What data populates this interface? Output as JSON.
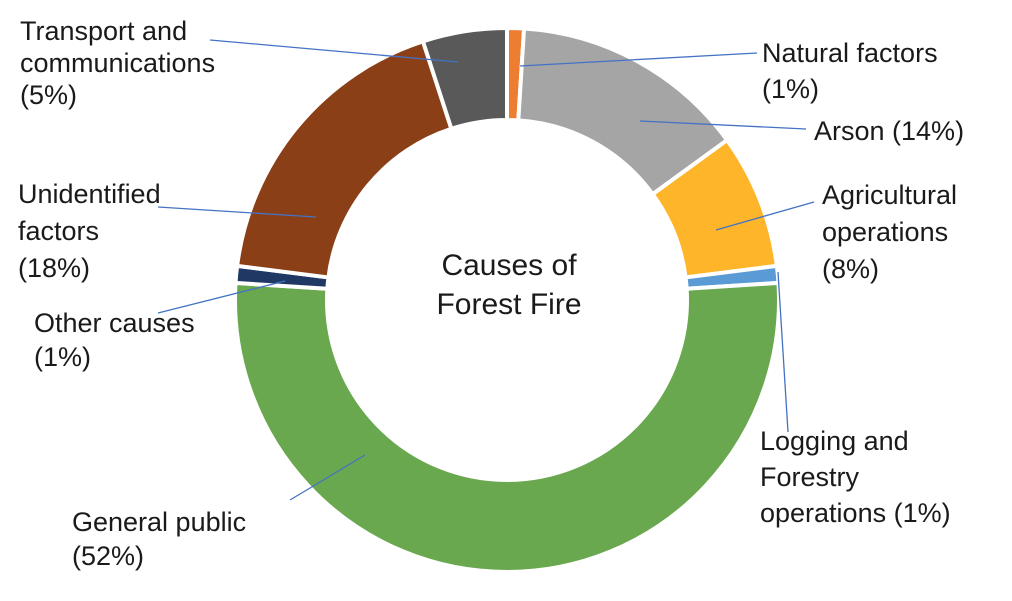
{
  "chart_data": {
    "type": "pie",
    "title": "Causes of Forest Fire",
    "center_title_lines": [
      "Causes of",
      "Forest Fire"
    ],
    "donut": true,
    "slices": [
      {
        "key": "natural",
        "name": "Natural factors",
        "value": 1,
        "color": "#ED7D31",
        "label_lines": [
          "Natural factors",
          "(1%)"
        ]
      },
      {
        "key": "arson",
        "name": "Arson",
        "value": 14,
        "color": "#A5A5A5",
        "label_lines": [
          "Arson (14%)"
        ]
      },
      {
        "key": "agricultural",
        "name": "Agricultural operations",
        "value": 8,
        "color": "#FFB52A",
        "label_lines": [
          "Agricultural",
          "operations",
          "(8%)"
        ]
      },
      {
        "key": "logging",
        "name": "Logging and Forestry operations",
        "value": 1,
        "color": "#5B9BD5",
        "label_lines": [
          "Logging and",
          "Forestry",
          "operations (1%)"
        ]
      },
      {
        "key": "general_public",
        "name": "General public",
        "value": 52,
        "color": "#6AA84F",
        "label_lines": [
          "General public",
          "(52%)"
        ]
      },
      {
        "key": "other",
        "name": "Other causes",
        "value": 1,
        "color": "#1F3864",
        "label_lines": [
          "Other causes",
          "(1%)"
        ]
      },
      {
        "key": "unidentified",
        "name": "Unidentified factors",
        "value": 18,
        "color": "#8B3F16",
        "label_lines": [
          "Unidentified",
          "factors",
          "(18%)"
        ]
      },
      {
        "key": "transport",
        "name": "Transport and communications",
        "value": 5,
        "color": "#595959",
        "label_lines": [
          "Transport and",
          "communications",
          "(5%)"
        ]
      }
    ]
  }
}
